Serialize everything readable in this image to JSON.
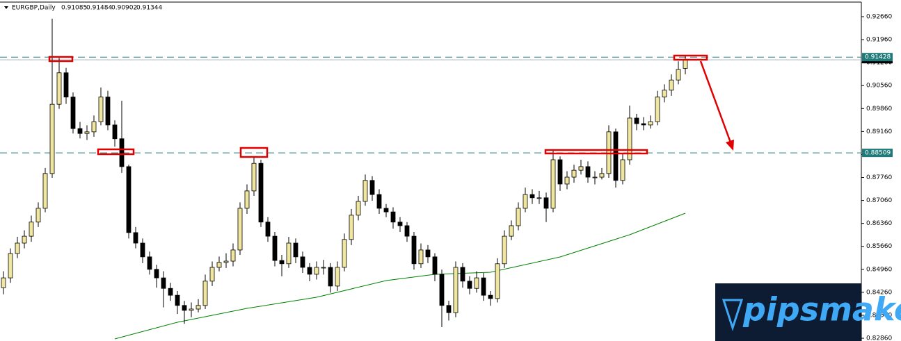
{
  "chart_data": {
    "type": "candlestick",
    "title": "EURGBP,Daily",
    "ylim": [
      0.82776,
      0.93168
    ],
    "yticks": [
      {
        "value": 0.9266,
        "label": "0.92660"
      },
      {
        "value": 0.9196,
        "label": "0.91960"
      },
      {
        "value": 0.9126,
        "label": "0.91260"
      },
      {
        "value": 0.9056,
        "label": "0.90560"
      },
      {
        "value": 0.8986,
        "label": "0.89860"
      },
      {
        "value": 0.8916,
        "label": "0.89160"
      },
      {
        "value": 0.8846,
        "label": "0.88460"
      },
      {
        "value": 0.8776,
        "label": "0.87760"
      },
      {
        "value": 0.8706,
        "label": "0.87060"
      },
      {
        "value": 0.8636,
        "label": "0.86360"
      },
      {
        "value": 0.8566,
        "label": "0.85660"
      },
      {
        "value": 0.8496,
        "label": "0.84960"
      },
      {
        "value": 0.8426,
        "label": "0.84260"
      },
      {
        "value": 0.8356,
        "label": "0.83560"
      },
      {
        "value": 0.8286,
        "label": "0.82860"
      }
    ],
    "up_color": "#f0e6a0",
    "down_color": "#000000",
    "candles": {
      "open": [
        0.844,
        0.847,
        0.8544,
        0.8576,
        0.8597,
        0.864,
        0.8682,
        0.8788,
        0.8999,
        0.9095,
        0.9021,
        0.8925,
        0.891,
        0.8915,
        0.8946,
        0.9021,
        0.8936,
        0.8894,
        0.8809,
        0.8608,
        0.8576,
        0.8534,
        0.8496,
        0.847,
        0.8438,
        0.8417,
        0.8386,
        0.8371,
        0.8375,
        0.8386,
        0.846,
        0.8502,
        0.8517,
        0.8521,
        0.8555,
        0.8682,
        0.8735,
        0.8819,
        0.864,
        0.8597,
        0.8523,
        0.8513,
        0.8576,
        0.8534,
        0.8502,
        0.8481,
        0.8502,
        0.8502,
        0.8445,
        0.8502,
        0.8587,
        0.8661,
        0.8703,
        0.8767,
        0.8724,
        0.8682,
        0.8671,
        0.864,
        0.8629,
        0.8597,
        0.8513,
        0.8555,
        0.8534,
        0.8481,
        0.8386,
        0.8364,
        0.8502,
        0.846,
        0.8438,
        0.847,
        0.8417,
        0.8407,
        0.8513,
        0.8597,
        0.8629,
        0.8682,
        0.8724,
        0.8714,
        0.8714,
        0.8682,
        0.883,
        0.8756,
        0.8777,
        0.8798,
        0.8809,
        0.8777,
        0.8777,
        0.8788,
        0.8915,
        0.8767,
        0.883,
        0.8957,
        0.894,
        0.8936,
        0.8946,
        0.9021,
        0.9042,
        0.9073,
        0.91085
      ],
      "high": [
        0.849,
        0.856,
        0.8595,
        0.8615,
        0.866,
        0.87,
        0.8805,
        0.926,
        0.914,
        0.911,
        0.9035,
        0.8945,
        0.8935,
        0.8965,
        0.905,
        0.904,
        0.895,
        0.901,
        0.8815,
        0.8625,
        0.859,
        0.855,
        0.851,
        0.849,
        0.8455,
        0.843,
        0.84,
        0.8395,
        0.8405,
        0.848,
        0.852,
        0.8535,
        0.8545,
        0.8575,
        0.87,
        0.8755,
        0.884,
        0.883,
        0.8655,
        0.861,
        0.854,
        0.8595,
        0.859,
        0.855,
        0.8515,
        0.852,
        0.8525,
        0.8515,
        0.852,
        0.8605,
        0.868,
        0.872,
        0.8785,
        0.878,
        0.874,
        0.8695,
        0.8685,
        0.8655,
        0.864,
        0.861,
        0.8575,
        0.857,
        0.8545,
        0.8495,
        0.84,
        0.852,
        0.8515,
        0.8475,
        0.849,
        0.8485,
        0.843,
        0.853,
        0.8615,
        0.8645,
        0.87,
        0.8745,
        0.874,
        0.8735,
        0.873,
        0.886,
        0.884,
        0.8795,
        0.8815,
        0.883,
        0.8825,
        0.8795,
        0.8805,
        0.8935,
        0.8925,
        0.885,
        0.8995,
        0.897,
        0.896,
        0.8965,
        0.904,
        0.906,
        0.909,
        0.913,
        0.91484
      ],
      "low": [
        0.842,
        0.8455,
        0.853,
        0.856,
        0.858,
        0.8625,
        0.867,
        0.8775,
        0.8985,
        0.9,
        0.891,
        0.8895,
        0.889,
        0.89,
        0.8935,
        0.892,
        0.887,
        0.879,
        0.859,
        0.856,
        0.8515,
        0.848,
        0.844,
        0.838,
        0.84,
        0.836,
        0.833,
        0.835,
        0.8365,
        0.8375,
        0.8445,
        0.849,
        0.85,
        0.8505,
        0.854,
        0.8665,
        0.872,
        0.8625,
        0.858,
        0.8505,
        0.8475,
        0.85,
        0.8515,
        0.8485,
        0.846,
        0.8465,
        0.848,
        0.8425,
        0.843,
        0.849,
        0.857,
        0.8645,
        0.869,
        0.8705,
        0.8665,
        0.8655,
        0.862,
        0.861,
        0.858,
        0.8495,
        0.85,
        0.8515,
        0.846,
        0.832,
        0.834,
        0.835,
        0.844,
        0.842,
        0.8425,
        0.84,
        0.8385,
        0.8395,
        0.85,
        0.8585,
        0.8615,
        0.867,
        0.8695,
        0.8695,
        0.864,
        0.867,
        0.8735,
        0.874,
        0.876,
        0.8785,
        0.876,
        0.8755,
        0.877,
        0.8775,
        0.8745,
        0.8755,
        0.8815,
        0.892,
        0.892,
        0.8925,
        0.8935,
        0.9005,
        0.9025,
        0.906,
        0.90902
      ],
      "close": [
        0.847,
        0.8544,
        0.8576,
        0.8597,
        0.864,
        0.8682,
        0.8788,
        0.8999,
        0.9095,
        0.9021,
        0.8925,
        0.891,
        0.8915,
        0.8946,
        0.9021,
        0.8936,
        0.8894,
        0.8809,
        0.8608,
        0.8576,
        0.8534,
        0.8496,
        0.847,
        0.8438,
        0.8417,
        0.8386,
        0.8371,
        0.8375,
        0.8386,
        0.846,
        0.8502,
        0.8517,
        0.8521,
        0.8555,
        0.8682,
        0.8735,
        0.8819,
        0.864,
        0.8597,
        0.8523,
        0.8513,
        0.8576,
        0.8534,
        0.8502,
        0.8481,
        0.8502,
        0.8502,
        0.8445,
        0.8502,
        0.8587,
        0.8661,
        0.8703,
        0.8767,
        0.8724,
        0.8682,
        0.8671,
        0.864,
        0.8629,
        0.8597,
        0.8513,
        0.8555,
        0.8534,
        0.8481,
        0.8386,
        0.8364,
        0.8502,
        0.846,
        0.8438,
        0.847,
        0.8417,
        0.8407,
        0.8513,
        0.8597,
        0.8629,
        0.8682,
        0.8724,
        0.8714,
        0.8714,
        0.8682,
        0.883,
        0.8756,
        0.8777,
        0.8798,
        0.8809,
        0.8777,
        0.8777,
        0.8788,
        0.8915,
        0.8767,
        0.883,
        0.8957,
        0.894,
        0.8936,
        0.8946,
        0.9021,
        0.9042,
        0.9073,
        0.9105,
        0.91344
      ]
    },
    "moving_average": {
      "color": "#008000",
      "x": [
        16,
        25,
        35,
        45,
        55,
        62,
        70,
        80,
        90,
        98
      ],
      "values": [
        0.82839,
        0.83347,
        0.8377,
        0.84109,
        0.84617,
        0.84807,
        0.84871,
        0.85337,
        0.86014,
        0.8667
      ]
    },
    "levels": [
      0.91428,
      0.88509
    ],
    "level_color": "#1f7a7a",
    "watermark": "pipsmake"
  }
}
